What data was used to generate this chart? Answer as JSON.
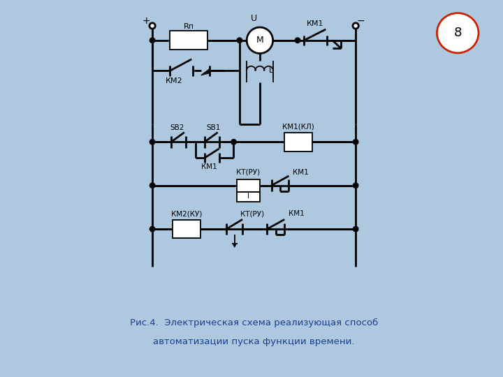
{
  "bg_color": "#aec8e0",
  "diagram_bg": "#ffffff",
  "line_color": "#000000",
  "caption_color": "#1a3f8f",
  "badge_text": "8",
  "badge_border_color": "#cc2200",
  "caption_line1": "Рис.4.  Электрическая схема реализующая способ",
  "caption_line2": "автоматизации пуска функции времени.",
  "fig_width": 7.2,
  "fig_height": 5.4,
  "dpi": 100
}
